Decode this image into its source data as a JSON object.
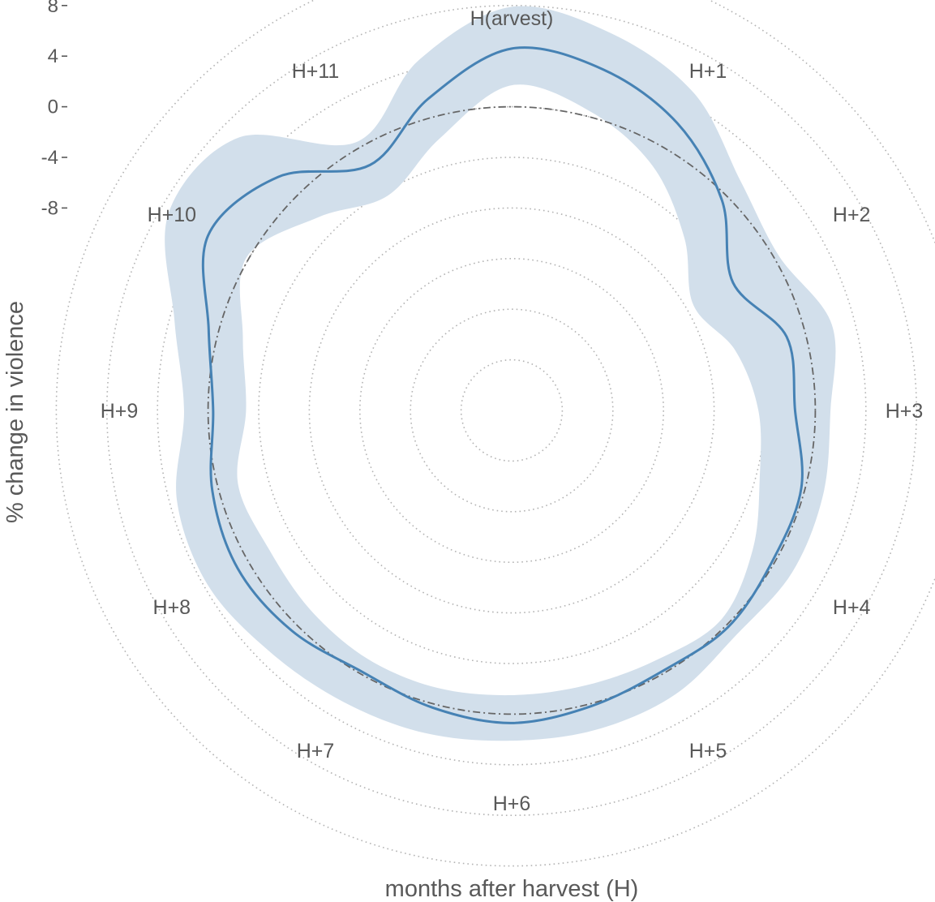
{
  "chart_data": {
    "type": "line",
    "coord": "polar",
    "xlabel": "months after harvest (H)",
    "ylabel": "% change in violence",
    "categories": [
      "H(arvest)",
      "H+1",
      "H+2",
      "H+3",
      "H+4",
      "H+5",
      "H+6",
      "H+7",
      "H+8",
      "H+9",
      "H+10",
      "H+11"
    ],
    "y_ticks": [
      8,
      4,
      0,
      -4,
      -8
    ],
    "ylim": [
      -24,
      12
    ],
    "grid_rings": [
      -20,
      -16,
      -12,
      -8,
      -4,
      0,
      4,
      8,
      12
    ],
    "reference_ring": 0,
    "estimate": {
      "x": [
        0,
        0.5,
        1,
        1.5,
        2,
        2.5,
        3,
        3.5,
        4,
        4.5,
        5,
        5.5,
        6,
        6.5,
        7,
        7.5,
        8,
        8.5,
        9,
        9.5,
        10,
        10.5,
        11,
        11.5
      ],
      "y": [
        4.6,
        3.9,
        2.2,
        -0.5,
        -3.8,
        -1.5,
        -1.6,
        -0.3,
        -0.2,
        0.2,
        -0.2,
        0.2,
        0.7,
        0.3,
        -0.2,
        0.6,
        1.0,
        0.5,
        -0.4,
        0.8,
        3.7,
        2.1,
        -1.6,
        1.5
      ]
    },
    "ci_upper": {
      "x": [
        0,
        0.5,
        1,
        1.5,
        2,
        2.5,
        3,
        3.5,
        4,
        4.5,
        5,
        5.5,
        6,
        6.5,
        7,
        7.5,
        8,
        8.5,
        9,
        9.5,
        10,
        10.5,
        11,
        11.5
      ],
      "y": [
        7.9,
        6.8,
        4.9,
        1.6,
        0.4,
        2.2,
        1.2,
        1.5,
        1.6,
        1.1,
        1.9,
        2.1,
        2.1,
        2.4,
        2.6,
        3.0,
        3.7,
        3.4,
        1.9,
        3.6,
        7.3,
        6.5,
        0.5,
        4.6
      ]
    },
    "ci_lower": {
      "x": [
        0,
        0.5,
        1,
        1.5,
        2,
        2.5,
        3,
        3.5,
        4,
        4.5,
        5,
        5.5,
        6,
        6.5,
        7,
        7.5,
        8,
        8.5,
        9,
        9.5,
        10,
        10.5,
        11,
        11.5
      ],
      "y": [
        1.7,
        0.4,
        -1.7,
        -4.7,
        -7.4,
        -5.7,
        -4.5,
        -3.7,
        -2.0,
        -0.6,
        -1.2,
        -1.5,
        -1.5,
        -1.3,
        -1.3,
        -1.6,
        -1.9,
        -1.6,
        -3.0,
        -2.0,
        0.2,
        -2.4,
        -4.4,
        -1.8
      ]
    },
    "colors": {
      "line": "#4682b4",
      "band": "#d2dfeb",
      "grid": "#b3b3b3",
      "reference": "#666666",
      "text": "#595959"
    }
  }
}
